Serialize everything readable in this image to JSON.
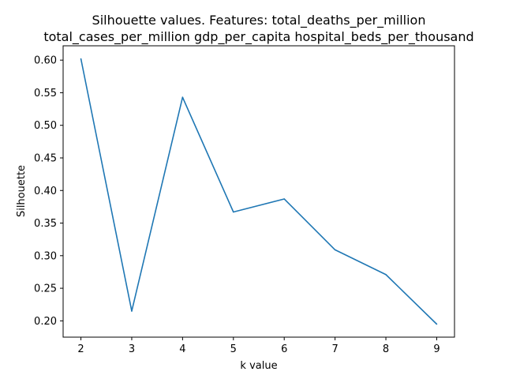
{
  "chart_data": {
    "type": "line",
    "title": "Silhouette values. Features:  total_deaths_per_million",
    "subtitle": "total_cases_per_million gdp_per_capita hospital_beds_per_thousand",
    "xlabel": "k value",
    "ylabel": "Silhouette",
    "x": [
      2,
      3,
      4,
      5,
      6,
      7,
      8,
      9
    ],
    "series": [
      {
        "values": [
          0.602,
          0.215,
          0.543,
          0.367,
          0.387,
          0.309,
          0.271,
          0.195
        ]
      }
    ],
    "xlim": [
      1.65,
      9.35
    ],
    "ylim": [
      0.175,
      0.622
    ],
    "xticks": [
      2,
      3,
      4,
      5,
      6,
      7,
      8,
      9
    ],
    "yticks": [
      0.2,
      0.25,
      0.3,
      0.35,
      0.4,
      0.45,
      0.5,
      0.55,
      0.6
    ],
    "ytick_labels": [
      "0.20",
      "0.25",
      "0.30",
      "0.35",
      "0.40",
      "0.45",
      "0.50",
      "0.55",
      "0.60"
    ],
    "grid": false,
    "line_color": "#1f77b4"
  }
}
